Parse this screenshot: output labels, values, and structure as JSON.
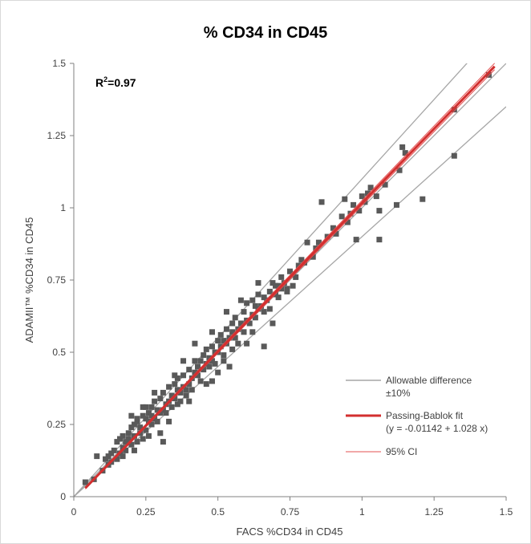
{
  "chart_data": {
    "type": "scatter",
    "title": "% CD34 in CD45",
    "xlabel": "FACS %CD34 in CD45",
    "ylabel": "ADAMII™ %CD34 in CD45",
    "xlim": [
      0,
      1.5
    ],
    "ylim": [
      0,
      1.5
    ],
    "x_ticks": [
      "0",
      "0.25",
      "0.5",
      "0.75",
      "1",
      "1.25",
      "1.5"
    ],
    "y_ticks": [
      "0",
      "0.25",
      "0.5",
      "0.75",
      "1",
      "1.25",
      "1.5"
    ],
    "grid": false,
    "legend_position": "bottom-right",
    "annotation": {
      "r2_base": "R",
      "r2_sup": "2",
      "r2_value": "=0.97"
    },
    "colors": {
      "points": "#595959",
      "allowable": "#a6a6a6",
      "fit": "#d32f2f",
      "ci": "#e35050",
      "axis": "#808080"
    },
    "series": [
      {
        "kind": "points",
        "points": [
          [
            0.04,
            0.05
          ],
          [
            0.07,
            0.06
          ],
          [
            0.08,
            0.14
          ],
          [
            0.1,
            0.09
          ],
          [
            0.11,
            0.13
          ],
          [
            0.12,
            0.11
          ],
          [
            0.13,
            0.12
          ],
          [
            0.13,
            0.15
          ],
          [
            0.14,
            0.16
          ],
          [
            0.15,
            0.13
          ],
          [
            0.15,
            0.19
          ],
          [
            0.16,
            0.15
          ],
          [
            0.16,
            0.2
          ],
          [
            0.17,
            0.17
          ],
          [
            0.17,
            0.21
          ],
          [
            0.18,
            0.16
          ],
          [
            0.18,
            0.19
          ],
          [
            0.19,
            0.2
          ],
          [
            0.19,
            0.22
          ],
          [
            0.2,
            0.18
          ],
          [
            0.2,
            0.24
          ],
          [
            0.2,
            0.28
          ],
          [
            0.21,
            0.21
          ],
          [
            0.21,
            0.25
          ],
          [
            0.22,
            0.19
          ],
          [
            0.22,
            0.26
          ],
          [
            0.22,
            0.27
          ],
          [
            0.23,
            0.22
          ],
          [
            0.23,
            0.24
          ],
          [
            0.24,
            0.2
          ],
          [
            0.24,
            0.28
          ],
          [
            0.25,
            0.23
          ],
          [
            0.25,
            0.27
          ],
          [
            0.25,
            0.31
          ],
          [
            0.26,
            0.26
          ],
          [
            0.26,
            0.29
          ],
          [
            0.27,
            0.25
          ],
          [
            0.27,
            0.28
          ],
          [
            0.27,
            0.31
          ],
          [
            0.28,
            0.27
          ],
          [
            0.28,
            0.33
          ],
          [
            0.29,
            0.26
          ],
          [
            0.29,
            0.3
          ],
          [
            0.3,
            0.29
          ],
          [
            0.3,
            0.34
          ],
          [
            0.31,
            0.3
          ],
          [
            0.31,
            0.36
          ],
          [
            0.31,
            0.19
          ],
          [
            0.32,
            0.32
          ],
          [
            0.32,
            0.29
          ],
          [
            0.33,
            0.33
          ],
          [
            0.33,
            0.38
          ],
          [
            0.34,
            0.31
          ],
          [
            0.34,
            0.35
          ],
          [
            0.35,
            0.34
          ],
          [
            0.35,
            0.39
          ],
          [
            0.36,
            0.32
          ],
          [
            0.36,
            0.37
          ],
          [
            0.36,
            0.41
          ],
          [
            0.37,
            0.36
          ],
          [
            0.37,
            0.33
          ],
          [
            0.38,
            0.38
          ],
          [
            0.38,
            0.42
          ],
          [
            0.39,
            0.37
          ],
          [
            0.39,
            0.35
          ],
          [
            0.4,
            0.39
          ],
          [
            0.4,
            0.44
          ],
          [
            0.41,
            0.41
          ],
          [
            0.41,
            0.37
          ],
          [
            0.42,
            0.43
          ],
          [
            0.42,
            0.47
          ],
          [
            0.43,
            0.42
          ],
          [
            0.43,
            0.45
          ],
          [
            0.44,
            0.4
          ],
          [
            0.44,
            0.47
          ],
          [
            0.45,
            0.44
          ],
          [
            0.45,
            0.49
          ],
          [
            0.46,
            0.46
          ],
          [
            0.46,
            0.51
          ],
          [
            0.47,
            0.45
          ],
          [
            0.47,
            0.48
          ],
          [
            0.48,
            0.47
          ],
          [
            0.48,
            0.52
          ],
          [
            0.49,
            0.5
          ],
          [
            0.49,
            0.46
          ],
          [
            0.5,
            0.5
          ],
          [
            0.5,
            0.54
          ],
          [
            0.5,
            0.43
          ],
          [
            0.51,
            0.52
          ],
          [
            0.51,
            0.56
          ],
          [
            0.52,
            0.49
          ],
          [
            0.52,
            0.54
          ],
          [
            0.53,
            0.53
          ],
          [
            0.53,
            0.58
          ],
          [
            0.54,
            0.55
          ],
          [
            0.55,
            0.51
          ],
          [
            0.55,
            0.57
          ],
          [
            0.55,
            0.6
          ],
          [
            0.56,
            0.55
          ],
          [
            0.56,
            0.62
          ],
          [
            0.57,
            0.58
          ],
          [
            0.57,
            0.53
          ],
          [
            0.58,
            0.6
          ],
          [
            0.59,
            0.57
          ],
          [
            0.59,
            0.64
          ],
          [
            0.6,
            0.61
          ],
          [
            0.6,
            0.67
          ],
          [
            0.61,
            0.6
          ],
          [
            0.62,
            0.63
          ],
          [
            0.62,
            0.68
          ],
          [
            0.63,
            0.62
          ],
          [
            0.63,
            0.66
          ],
          [
            0.64,
            0.65
          ],
          [
            0.64,
            0.7
          ],
          [
            0.65,
            0.66
          ],
          [
            0.66,
            0.64
          ],
          [
            0.66,
            0.69
          ],
          [
            0.67,
            0.68
          ],
          [
            0.68,
            0.71
          ],
          [
            0.68,
            0.65
          ],
          [
            0.69,
            0.74
          ],
          [
            0.7,
            0.7
          ],
          [
            0.7,
            0.73
          ],
          [
            0.71,
            0.69
          ],
          [
            0.72,
            0.72
          ],
          [
            0.72,
            0.76
          ],
          [
            0.73,
            0.74
          ],
          [
            0.74,
            0.72
          ],
          [
            0.75,
            0.78
          ],
          [
            0.76,
            0.77
          ],
          [
            0.77,
            0.76
          ],
          [
            0.78,
            0.8
          ],
          [
            0.79,
            0.82
          ],
          [
            0.8,
            0.81
          ],
          [
            0.81,
            0.88
          ],
          [
            0.83,
            0.83
          ],
          [
            0.84,
            0.86
          ],
          [
            0.85,
            0.88
          ],
          [
            0.86,
            1.02
          ],
          [
            0.88,
            0.9
          ],
          [
            0.9,
            0.93
          ],
          [
            0.91,
            0.91
          ],
          [
            0.93,
            0.97
          ],
          [
            0.94,
            1.03
          ],
          [
            0.95,
            0.95
          ],
          [
            0.96,
            0.98
          ],
          [
            0.97,
            1.01
          ],
          [
            0.98,
            0.89
          ],
          [
            0.99,
            0.99
          ],
          [
            1.0,
            1.04
          ],
          [
            1.01,
            1.02
          ],
          [
            1.02,
            1.05
          ],
          [
            1.03,
            1.07
          ],
          [
            1.05,
            1.04
          ],
          [
            1.06,
            0.99
          ],
          [
            1.06,
            0.89
          ],
          [
            1.08,
            1.08
          ],
          [
            1.12,
            1.01
          ],
          [
            1.13,
            1.13
          ],
          [
            1.14,
            1.21
          ],
          [
            1.15,
            1.19
          ],
          [
            1.21,
            1.03
          ],
          [
            1.32,
            1.18
          ],
          [
            1.32,
            1.34
          ],
          [
            1.44,
            1.46
          ],
          [
            0.3,
            0.22
          ],
          [
            0.4,
            0.33
          ],
          [
            0.48,
            0.4
          ],
          [
            0.54,
            0.45
          ],
          [
            0.6,
            0.53
          ],
          [
            0.66,
            0.52
          ],
          [
            0.69,
            0.6
          ],
          [
            0.42,
            0.53
          ],
          [
            0.48,
            0.57
          ],
          [
            0.53,
            0.64
          ],
          [
            0.58,
            0.68
          ],
          [
            0.64,
            0.74
          ],
          [
            0.71,
            0.73
          ],
          [
            0.76,
            0.73
          ],
          [
            0.21,
            0.16
          ],
          [
            0.26,
            0.21
          ],
          [
            0.33,
            0.26
          ],
          [
            0.12,
            0.14
          ],
          [
            0.17,
            0.14
          ],
          [
            0.24,
            0.31
          ],
          [
            0.35,
            0.42
          ],
          [
            0.28,
            0.36
          ],
          [
            0.38,
            0.47
          ],
          [
            0.46,
            0.39
          ],
          [
            0.52,
            0.47
          ],
          [
            0.62,
            0.57
          ],
          [
            0.74,
            0.71
          ]
        ]
      },
      {
        "kind": "line",
        "name": "Allowable difference\n±10%",
        "segments": [
          {
            "x": [
              0,
              1.5
            ],
            "y": [
              0,
              1.65
            ]
          },
          {
            "x": [
              0,
              1.5
            ],
            "y": [
              0,
              1.5
            ]
          },
          {
            "x": [
              0,
              1.5
            ],
            "y": [
              0,
              1.35
            ]
          }
        ]
      },
      {
        "kind": "line",
        "name": "Passing-Bablok fit\n(y = -0.01142 + 1.028 x)",
        "x": [
          0.04,
          1.46
        ],
        "y": [
          0.0297,
          1.4895
        ]
      },
      {
        "kind": "line",
        "name": "95% CI",
        "segments": [
          {
            "x": [
              0.04,
              1.46
            ],
            "y": [
              0.0267,
              1.4785
            ]
          },
          {
            "x": [
              0.04,
              1.46
            ],
            "y": [
              0.0327,
              1.5005
            ]
          }
        ]
      }
    ]
  }
}
